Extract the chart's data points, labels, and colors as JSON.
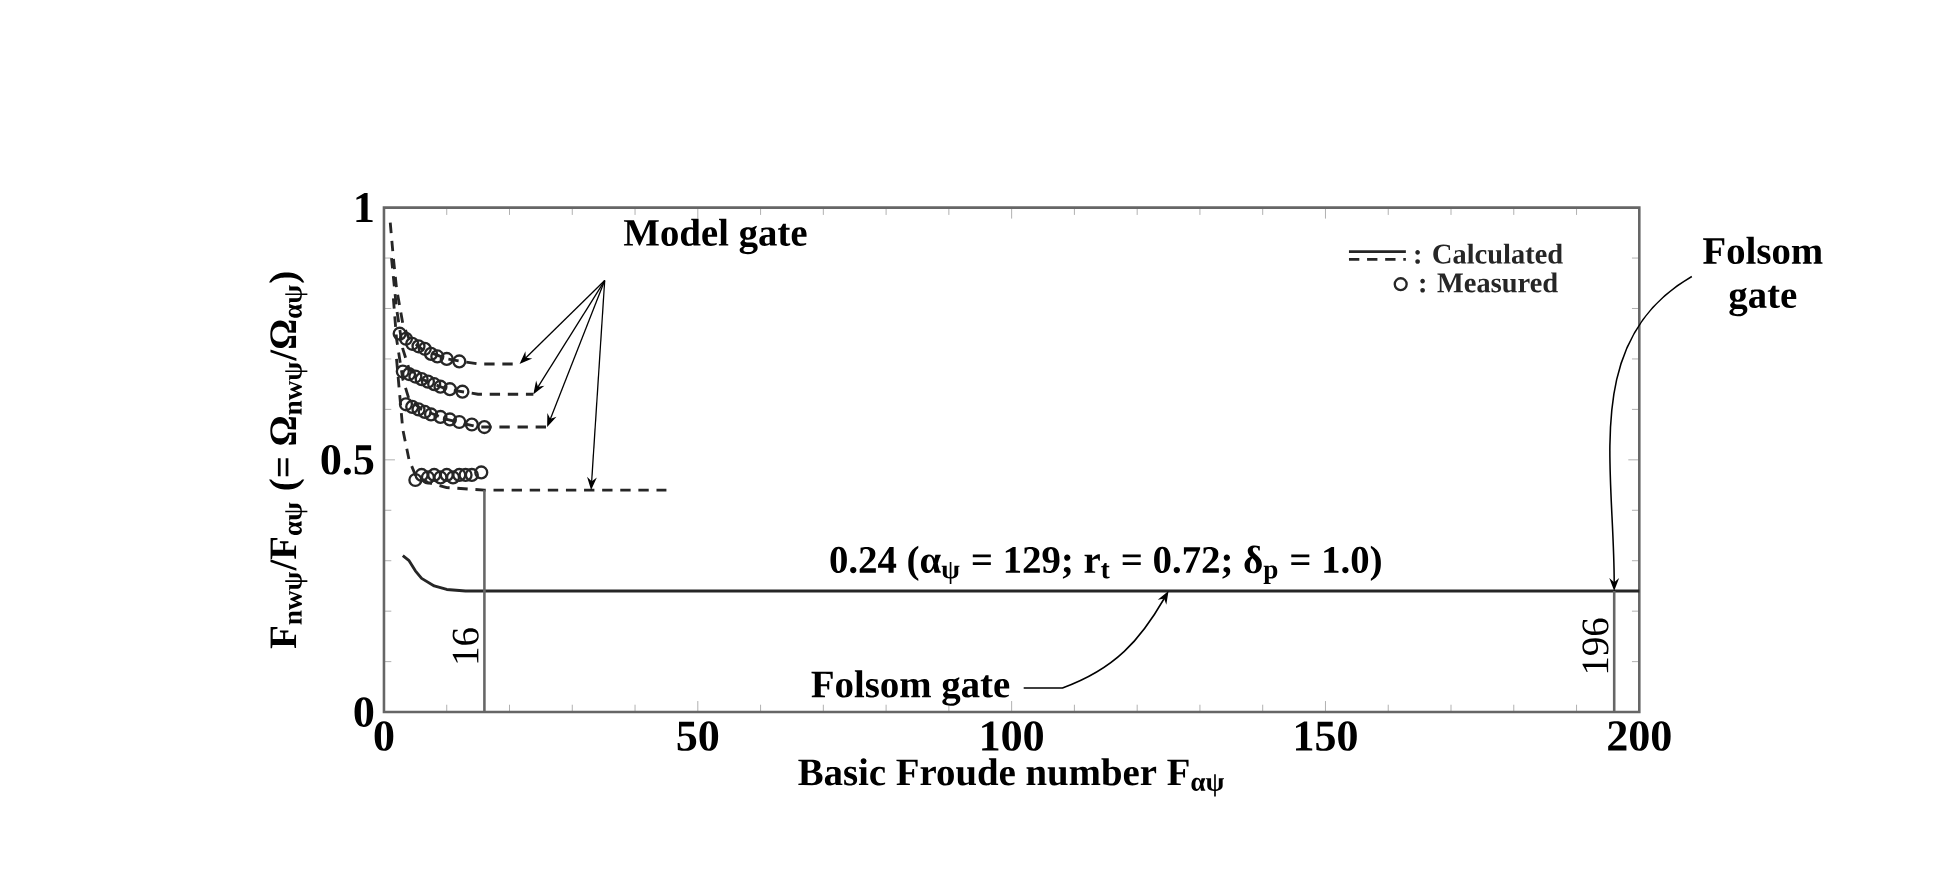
{
  "chart_data": {
    "type": "line",
    "xlabel": "Basic Froude number F$_{αψ}$",
    "ylabel": "F$_{nwψ}$/F$_{αψ}$ (= Ω$_{nwψ}$/Ω$_{αψ}$)",
    "xlim": [
      0,
      200
    ],
    "ylim": [
      0,
      1
    ],
    "xticks": [
      0,
      50,
      100,
      150,
      200
    ],
    "yticks": [
      0,
      0.5,
      1
    ],
    "legend": "top right",
    "series": [
      {
        "name": ": Calculated",
        "type": "line",
        "line_style": "solid",
        "color": "#262626",
        "x": [
          3,
          4,
          5,
          6,
          8,
          10,
          13,
          20,
          200
        ],
        "values": [
          0.31,
          0.3,
          0.28,
          0.265,
          0.25,
          0.243,
          0.24,
          0.24,
          0.24
        ]
      },
      {
        "type": "line",
        "line_style": "dashed",
        "color": "#262626",
        "x": [
          1,
          1.5,
          2,
          3,
          4,
          6,
          10,
          15,
          21.6
        ],
        "values": [
          0.97,
          0.9,
          0.84,
          0.77,
          0.74,
          0.72,
          0.7,
          0.69,
          0.69
        ]
      },
      {
        "type": "line",
        "line_style": "dashed",
        "color": "#262626",
        "x": [
          1.2,
          2,
          3,
          4,
          6,
          10,
          15,
          23.8
        ],
        "values": [
          0.9,
          0.8,
          0.72,
          0.68,
          0.66,
          0.64,
          0.63,
          0.63
        ]
      },
      {
        "type": "line",
        "line_style": "dashed",
        "color": "#262626",
        "x": [
          1.5,
          2,
          3,
          4,
          6,
          10,
          15,
          26
        ],
        "values": [
          0.82,
          0.74,
          0.66,
          0.62,
          0.6,
          0.58,
          0.565,
          0.565
        ]
      },
      {
        "type": "line",
        "line_style": "dashed",
        "color": "#262626",
        "x": [
          2,
          3,
          4,
          5,
          7,
          10,
          16,
          45
        ],
        "values": [
          0.7,
          0.56,
          0.5,
          0.47,
          0.455,
          0.445,
          0.44,
          0.44
        ]
      },
      {
        "name": ": Measured",
        "type": "scatter",
        "marker": "circle",
        "color": "#262626",
        "x": [
          2.5,
          3.5,
          4.5,
          5.5,
          6.5,
          7.5,
          8.5,
          10,
          12
        ],
        "values": [
          0.75,
          0.74,
          0.73,
          0.725,
          0.72,
          0.71,
          0.705,
          0.7,
          0.695
        ]
      },
      {
        "type": "scatter",
        "marker": "circle",
        "color": "#262626",
        "x": [
          3,
          4,
          5,
          6,
          7,
          8,
          9,
          10.5,
          12.5
        ],
        "values": [
          0.675,
          0.67,
          0.665,
          0.66,
          0.655,
          0.65,
          0.645,
          0.64,
          0.635
        ]
      },
      {
        "type": "scatter",
        "marker": "circle",
        "color": "#262626",
        "x": [
          3.5,
          4.5,
          5.5,
          6.5,
          7.5,
          9,
          10.5,
          12,
          14,
          16
        ],
        "values": [
          0.61,
          0.605,
          0.6,
          0.595,
          0.59,
          0.585,
          0.58,
          0.575,
          0.57,
          0.565
        ]
      },
      {
        "type": "scatter",
        "marker": "circle",
        "color": "#262626",
        "x": [
          5,
          6,
          7,
          8,
          9,
          10,
          11,
          12,
          13,
          14,
          15.5
        ],
        "values": [
          0.46,
          0.47,
          0.465,
          0.47,
          0.465,
          0.47,
          0.465,
          0.47,
          0.47,
          0.47,
          0.475
        ]
      }
    ],
    "ref_lines": [
      {
        "axis": "x",
        "value": 16,
        "label": "16"
      },
      {
        "axis": "x",
        "value": 196,
        "label": "196"
      }
    ],
    "annotations": [
      {
        "text": "Model gate",
        "x": 33,
        "y": 0.44
      },
      {
        "text": "0.24 (α$_{ψ}$ = 129; r$_{t}$ = 0.72; δ$_{p}$ = 1.0)",
        "x": 115,
        "y": 0.24
      },
      {
        "text": "Folsom gate",
        "x": 125,
        "y": 0.24
      },
      {
        "text": "Folsom gate",
        "x": 196,
        "y": 0.24
      }
    ]
  }
}
